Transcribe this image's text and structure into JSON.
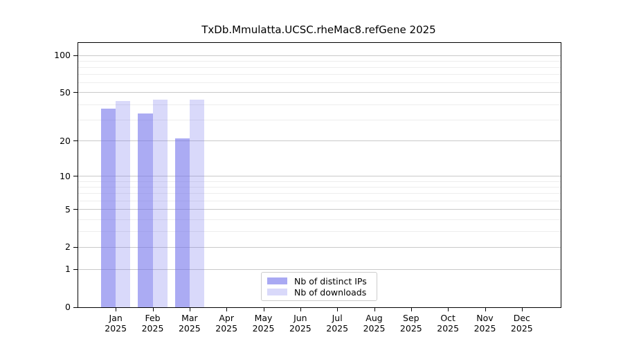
{
  "chart_data": {
    "type": "bar",
    "title": "TxDb.Mmulatta.UCSC.rheMac8.refGene 2025",
    "xlabel": "",
    "ylabel": "",
    "year_label": "2025",
    "categories": [
      "Jan",
      "Feb",
      "Mar",
      "Apr",
      "May",
      "Jun",
      "Jul",
      "Aug",
      "Sep",
      "Oct",
      "Nov",
      "Dec"
    ],
    "series": [
      {
        "name": "Nb of distinct IPs",
        "color": "#6E6EEB94",
        "swatch_color": "#a9a9f3",
        "values": [
          37,
          34,
          21,
          null,
          null,
          null,
          null,
          null,
          null,
          null,
          null,
          null
        ]
      },
      {
        "name": "Nb of downloads",
        "color": "#6E6EEB42",
        "swatch_color": "#d9d9fa",
        "values": [
          43,
          44,
          44,
          null,
          null,
          null,
          null,
          null,
          null,
          null,
          null,
          null
        ]
      }
    ],
    "yscale": "log1p",
    "ylim": [
      0,
      126
    ],
    "yticks": [
      0,
      1,
      2,
      5,
      10,
      20,
      50,
      100
    ],
    "yticks_minor": [
      3,
      4,
      6,
      7,
      8,
      9,
      30,
      40,
      60,
      70,
      80,
      90
    ],
    "grid": true,
    "legend_position": "lower center",
    "colors": {
      "grid_major": "#c9c9c9",
      "grid_minor": "#ededed",
      "spine": "#000000",
      "background": "#ffffff"
    }
  }
}
